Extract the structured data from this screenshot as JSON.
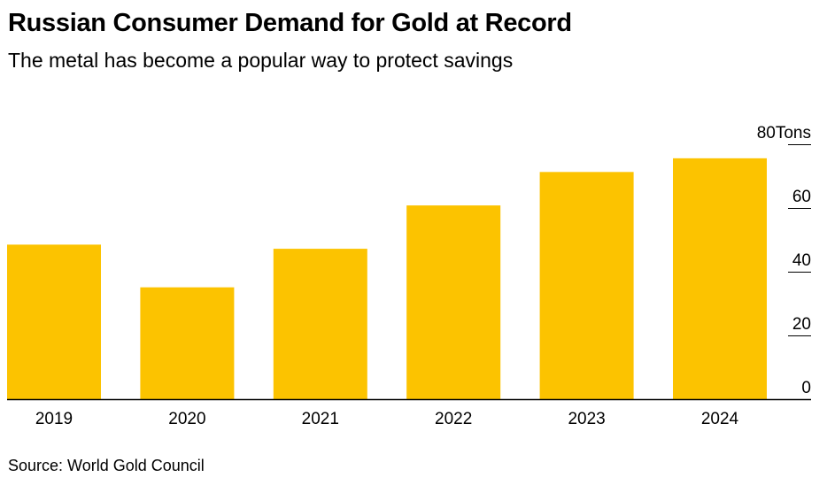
{
  "title": "Russian Consumer Demand for Gold at Record",
  "subtitle": "The metal has become a popular way to protect savings",
  "source": "Source: World Gold Council",
  "colors": {
    "bar": "#fcc300",
    "axis": "#000000",
    "text": "#000000"
  },
  "chart_data": {
    "type": "bar",
    "title": "Russian Consumer Demand for Gold at Record",
    "subtitle": "The metal has become a popular way to protect savings",
    "xlabel": "",
    "ylabel": "Tons",
    "unit_label": "Tons",
    "categories": [
      "2019",
      "2020",
      "2021",
      "2022",
      "2023",
      "2024"
    ],
    "values": [
      48.5,
      35.1,
      47.2,
      60.8,
      71.3,
      75.6
    ],
    "ylim": [
      0,
      80
    ],
    "yticks": [
      0,
      20,
      40,
      60,
      80
    ],
    "ytick_labels": [
      "0",
      "20",
      "40",
      "60",
      "80"
    ],
    "y_axis_position": "right",
    "grid": false
  }
}
